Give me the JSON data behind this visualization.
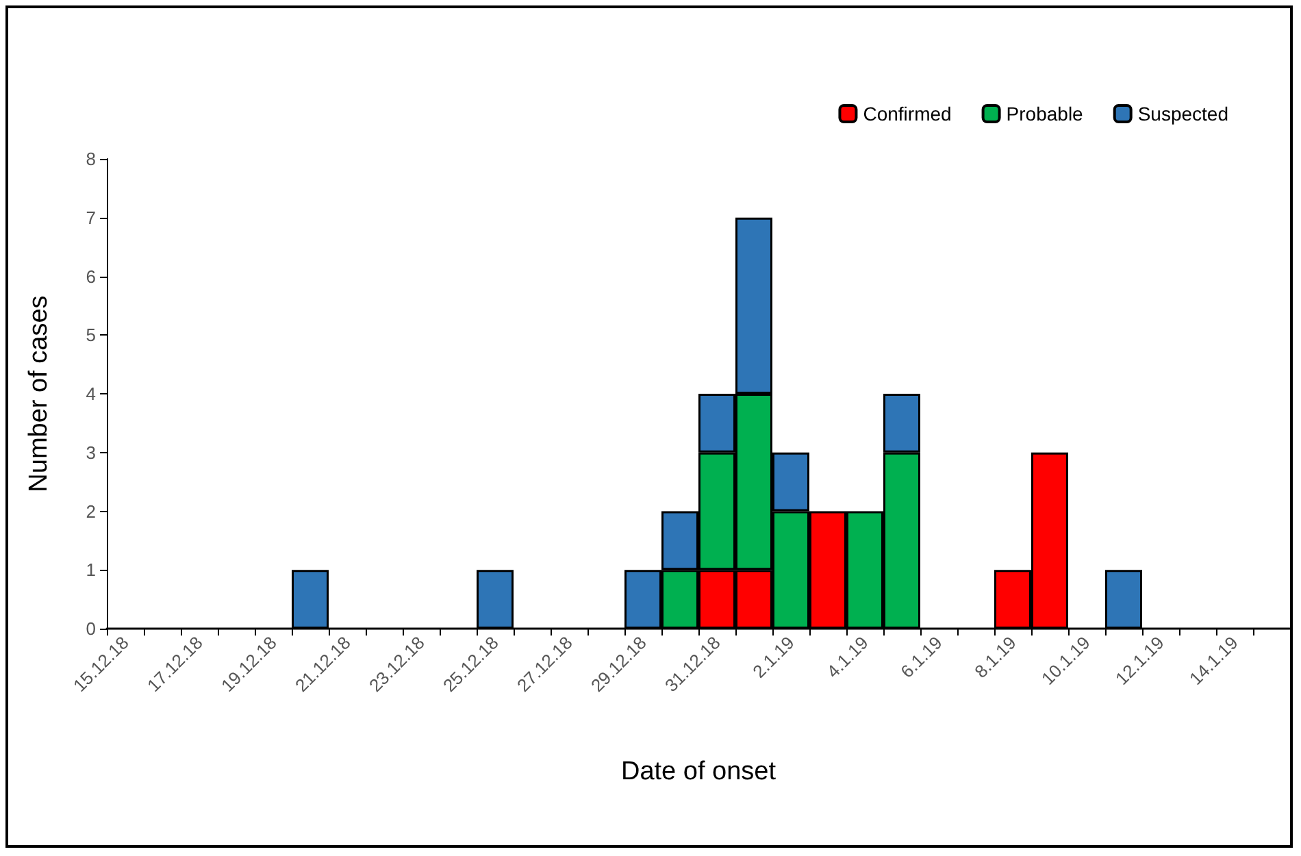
{
  "chart_data": {
    "type": "bar",
    "stacked": true,
    "xlabel": "Date of onset",
    "ylabel": "Number of cases",
    "categories": [
      "15.12.18",
      null,
      "17.12.18",
      null,
      "19.12.18",
      null,
      "21.12.18",
      null,
      "23.12.18",
      null,
      "25.12.18",
      null,
      "27.12.18",
      null,
      "29.12.18",
      null,
      "31.12.18",
      null,
      "2.1.19",
      null,
      "4.1.19",
      null,
      "6.1.19",
      null,
      "8.1.19",
      null,
      "10.1.19",
      null,
      "12.1.19",
      null,
      "14.1.19",
      null
    ],
    "series": [
      {
        "name": "Confirmed",
        "color": "#ff0000",
        "values": [
          0,
          0,
          0,
          0,
          0,
          0,
          0,
          0,
          0,
          0,
          0,
          0,
          0,
          0,
          0,
          0,
          1,
          1,
          0,
          2,
          0,
          0,
          0,
          0,
          1,
          3,
          0,
          0,
          0,
          0,
          0,
          0
        ]
      },
      {
        "name": "Probable",
        "color": "#00b050",
        "values": [
          0,
          0,
          0,
          0,
          0,
          0,
          0,
          0,
          0,
          0,
          0,
          0,
          0,
          0,
          0,
          1,
          2,
          3,
          2,
          0,
          2,
          3,
          0,
          0,
          0,
          0,
          0,
          0,
          0,
          0,
          0,
          0
        ]
      },
      {
        "name": "Suspected",
        "color": "#2e75b6",
        "values": [
          0,
          0,
          0,
          0,
          0,
          1,
          0,
          0,
          0,
          0,
          1,
          0,
          0,
          0,
          1,
          1,
          1,
          3,
          1,
          0,
          0,
          1,
          0,
          0,
          0,
          0,
          0,
          1,
          0,
          0,
          0,
          0
        ]
      }
    ],
    "ylim": [
      0,
      8
    ],
    "yticks": [
      0,
      1,
      2,
      3,
      4,
      5,
      6,
      7,
      8
    ],
    "grid": false,
    "legend": "top right"
  }
}
